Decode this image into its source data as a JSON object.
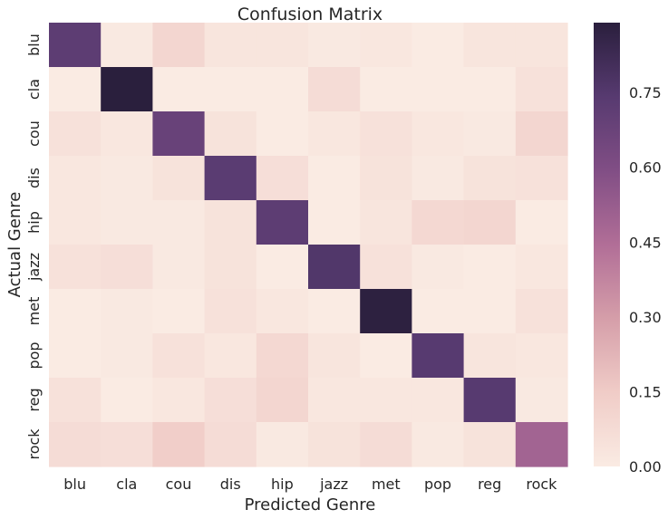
{
  "chart_data": {
    "type": "heatmap",
    "title": "Confusion Matrix",
    "xlabel": "Predicted Genre",
    "ylabel": "Actual Genre",
    "x_categories": [
      "blu",
      "cla",
      "cou",
      "dis",
      "hip",
      "jazz",
      "met",
      "pop",
      "reg",
      "rock"
    ],
    "y_categories": [
      "blu",
      "cla",
      "cou",
      "dis",
      "hip",
      "jazz",
      "met",
      "pop",
      "reg",
      "rock"
    ],
    "values": [
      [
        0.72,
        0.01,
        0.1,
        0.03,
        0.03,
        0.01,
        0.02,
        0.0,
        0.03,
        0.03
      ],
      [
        0.0,
        0.89,
        0.0,
        0.0,
        0.0,
        0.07,
        0.0,
        0.0,
        0.0,
        0.05
      ],
      [
        0.05,
        0.02,
        0.68,
        0.04,
        0.0,
        0.02,
        0.05,
        0.02,
        0.01,
        0.1
      ],
      [
        0.02,
        0.01,
        0.04,
        0.73,
        0.06,
        0.0,
        0.04,
        0.01,
        0.04,
        0.05
      ],
      [
        0.02,
        0.01,
        0.01,
        0.04,
        0.72,
        0.0,
        0.03,
        0.09,
        0.1,
        0.0
      ],
      [
        0.05,
        0.06,
        0.01,
        0.04,
        0.0,
        0.76,
        0.05,
        0.01,
        0.0,
        0.02
      ],
      [
        0.0,
        0.01,
        0.0,
        0.05,
        0.02,
        0.0,
        0.88,
        0.0,
        0.0,
        0.05
      ],
      [
        0.0,
        0.01,
        0.05,
        0.02,
        0.09,
        0.03,
        0.0,
        0.74,
        0.03,
        0.02
      ],
      [
        0.05,
        0.0,
        0.02,
        0.06,
        0.1,
        0.02,
        0.02,
        0.02,
        0.74,
        0.01
      ],
      [
        0.07,
        0.06,
        0.14,
        0.07,
        0.01,
        0.04,
        0.07,
        0.01,
        0.04,
        0.49
      ]
    ],
    "colorbar": {
      "min": 0.0,
      "max": 0.89,
      "ticks": [
        "0.00",
        "0.15",
        "0.30",
        "0.45",
        "0.60",
        "0.75"
      ],
      "tick_values": [
        0.0,
        0.15,
        0.3,
        0.45,
        0.6,
        0.75
      ]
    },
    "colormap": [
      "#faebe3",
      "#f0ccc7",
      "#d59ea9",
      "#b16e97",
      "#814e85",
      "#573a70",
      "#2a1f3d"
    ]
  }
}
